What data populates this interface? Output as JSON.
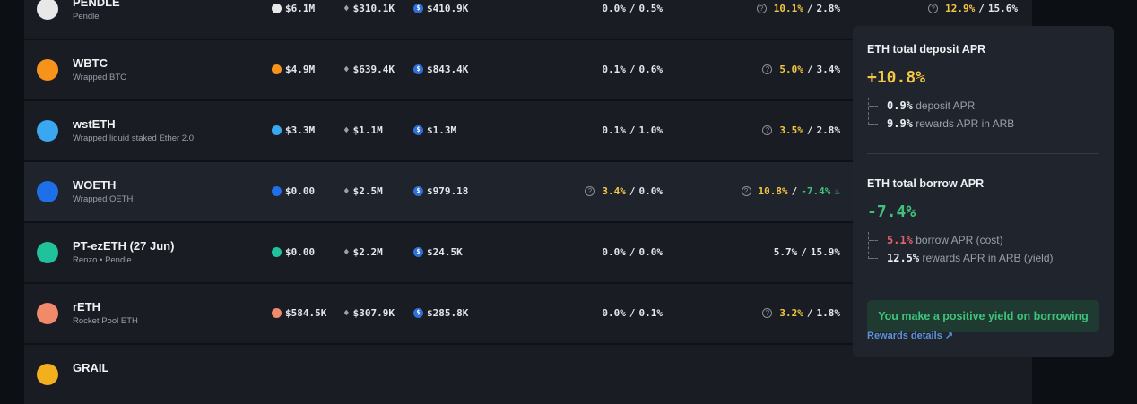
{
  "rows": [
    {
      "symbol": "PENDLE",
      "name": "Pendle",
      "icon": "pendle-icon",
      "icon_color": "#e8e8e8",
      "total": "$6.1M",
      "eth": "$310.1K",
      "usdc": "$410.9K",
      "apr1": {
        "a": "0.0%",
        "b": "0.5%",
        "help": false,
        "a_color": "#e4e6ea"
      },
      "apr2": {
        "a": "10.1%",
        "b": "2.8%",
        "help": true,
        "a_color": "#f2c744",
        "b_color": "#e4e6ea"
      },
      "apr3": {
        "a": "12.9%",
        "b": "15.6%",
        "help": true
      }
    },
    {
      "symbol": "WBTC",
      "name": "Wrapped BTC",
      "icon": "bitcoin-icon",
      "icon_color": "#f7931a",
      "total": "$4.9M",
      "eth": "$639.4K",
      "usdc": "$843.4K",
      "apr1": {
        "a": "0.1%",
        "b": "0.6%",
        "help": false,
        "a_color": "#e4e6ea"
      },
      "apr2": {
        "a": "5.0%",
        "b": "3.4%",
        "help": true,
        "a_color": "#f2c744",
        "b_color": "#e4e6ea"
      }
    },
    {
      "symbol": "wstETH",
      "name": "Wrapped liquid staked Ether 2.0",
      "icon": "wsteth-icon",
      "icon_color": "#3aa8f0",
      "total": "$3.3M",
      "eth": "$1.1M",
      "usdc": "$1.3M",
      "apr1": {
        "a": "0.1%",
        "b": "1.0%",
        "help": false,
        "a_color": "#e4e6ea"
      },
      "apr2": {
        "a": "3.5%",
        "b": "2.8%",
        "help": true,
        "a_color": "#f2c744",
        "b_color": "#e4e6ea"
      }
    },
    {
      "symbol": "WOETH",
      "name": "Wrapped OETH",
      "icon": "woeth-icon",
      "icon_color": "#1f6fe8",
      "total": "$0.00",
      "eth": "$2.5M",
      "usdc": "$979.18",
      "apr1": {
        "a": "3.4%",
        "b": "0.0%",
        "help": true,
        "a_color": "#f2c744"
      },
      "apr2": {
        "a": "10.8%",
        "b": "-7.4%",
        "help": true,
        "a_color": "#f2c744",
        "b_color": "#3fc37a",
        "flame": true
      }
    },
    {
      "symbol": "PT-ezETH (27 Jun)",
      "name": "Renzo • Pendle",
      "icon": "pt-ezeth-icon",
      "icon_color": "#1fc29a",
      "total": "$0.00",
      "eth": "$2.2M",
      "usdc": "$24.5K",
      "apr1": {
        "a": "0.0%",
        "b": "0.0%",
        "help": false,
        "a_color": "#e4e6ea"
      },
      "apr2": {
        "a": "5.7%",
        "b": "15.9%",
        "help": false,
        "a_color": "#e4e6ea",
        "b_color": "#e4e6ea"
      }
    },
    {
      "symbol": "rETH",
      "name": "Rocket Pool ETH",
      "icon": "reth-icon",
      "icon_color": "#f08a6a",
      "total": "$584.5K",
      "eth": "$307.9K",
      "usdc": "$285.8K",
      "apr1": {
        "a": "0.0%",
        "b": "0.1%",
        "help": false,
        "a_color": "#e4e6ea"
      },
      "apr2": {
        "a": "3.2%",
        "b": "1.8%",
        "help": true,
        "a_color": "#f2c744",
        "b_color": "#e4e6ea"
      }
    },
    {
      "symbol": "GRAIL",
      "icon": "grail-icon",
      "icon_color": "#f2b01e"
    }
  ],
  "tooltip": {
    "deposit_title": "ETH total deposit APR",
    "deposit_total": "+10.8%",
    "deposit_lines": [
      {
        "value": "0.9%",
        "label": "deposit APR"
      },
      {
        "value": "9.9%",
        "label": "rewards APR in ARB"
      }
    ],
    "borrow_title": "ETH total borrow APR",
    "borrow_total": "-7.4%",
    "borrow_lines": [
      {
        "value": "5.1%",
        "label": "borrow APR (cost)",
        "color": "#e5636b"
      },
      {
        "value": "12.5%",
        "label": "rewards APR in ARB (yield)",
        "color": "#eef0f3"
      }
    ],
    "banner": "You make a positive yield on borrowing",
    "link": "Rewards details"
  }
}
